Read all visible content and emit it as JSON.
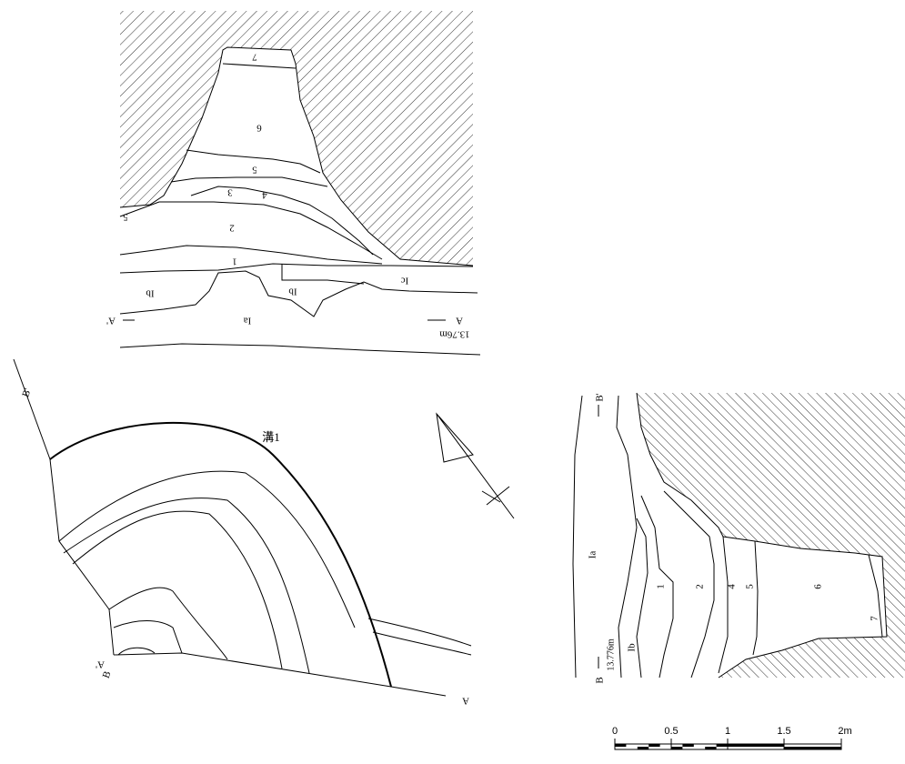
{
  "section_a": {
    "layers": [
      "7",
      "6",
      "5",
      "3",
      "4",
      "2",
      "5",
      "1",
      "Ib",
      "Ib",
      "Ic",
      "Ia"
    ],
    "left_point": "A'",
    "right_point": "A",
    "elevation": "13.76m"
  },
  "plan": {
    "feature": "溝1",
    "points": [
      "B'",
      "A'",
      "B",
      "A"
    ]
  },
  "section_b": {
    "top_point": "B'",
    "bottom_point": "B",
    "elevation": "13.776m",
    "layers": [
      "Ia",
      "1",
      "2",
      "4",
      "5",
      "6",
      "7",
      "Ib"
    ]
  },
  "scale": {
    "labels": [
      "0",
      "0.5",
      "1",
      "1.5",
      "2m"
    ]
  }
}
